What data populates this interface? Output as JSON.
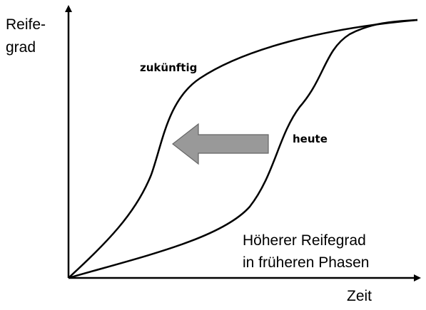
{
  "axes": {
    "y_label_line1": "Reife-",
    "y_label_line2": "grad",
    "x_label": "Zeit"
  },
  "curves": {
    "future_label": "zukünftig",
    "current_label": "heute"
  },
  "annotation": {
    "line1": "Höherer Reifegrad",
    "line2": "in früheren Phasen"
  },
  "colors": {
    "axis": "#000000",
    "curve": "#000000",
    "arrow_fill": "#999999",
    "arrow_stroke": "#666666"
  }
}
